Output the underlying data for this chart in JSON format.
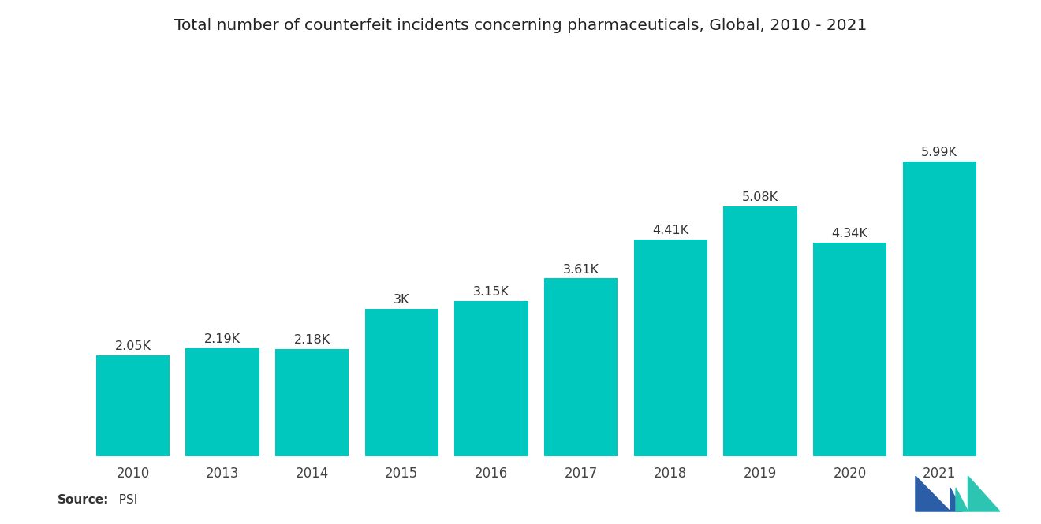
{
  "title": "Total number of counterfeit incidents concerning pharmaceuticals, Global, 2010 - 2021",
  "categories": [
    "2010",
    "2013",
    "2014",
    "2015",
    "2016",
    "2017",
    "2018",
    "2019",
    "2020",
    "2021"
  ],
  "values": [
    2050,
    2190,
    2180,
    3000,
    3150,
    3610,
    4410,
    5080,
    4340,
    5990
  ],
  "labels": [
    "2.05K",
    "2.19K",
    "2.18K",
    "3K",
    "3.15K",
    "3.61K",
    "4.41K",
    "5.08K",
    "4.34K",
    "5.99K"
  ],
  "bar_color": "#00C8BE",
  "background_color": "#FFFFFF",
  "title_fontsize": 14.5,
  "label_fontsize": 11.5,
  "tick_fontsize": 12,
  "source_bold": "Source:",
  "source_plain": "  PSI",
  "ylim": [
    0,
    8000
  ],
  "bar_width": 0.82,
  "logo_blue": "#2B5EA7",
  "logo_teal": "#2DC5B2"
}
